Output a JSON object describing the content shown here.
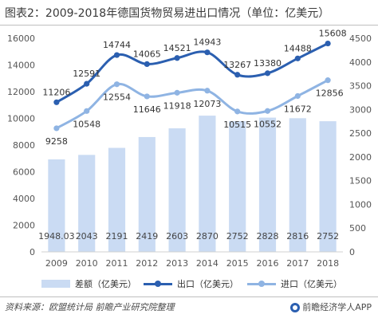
{
  "title": "图表2：2009-2018年德国货物贸易进出口情况（单位：亿美元）",
  "source": "资料来源：欧盟统计局 前瞻产业研究院整理",
  "brand": "前瞻经济学人APP",
  "colors": {
    "bars": "#cadbf3",
    "export": "#2b5fb0",
    "import": "#8fb4e3",
    "axis_text": "#555555"
  },
  "chart_data": {
    "type": "bar+line",
    "categories": [
      "2009",
      "2010",
      "2011",
      "2012",
      "2013",
      "2014",
      "2015",
      "2016",
      "2017",
      "2018"
    ],
    "series": [
      {
        "name": "差额（亿美元）",
        "type": "bar",
        "axis": "right",
        "values": [
          1948.03,
          2043,
          2191,
          2419,
          2603,
          2870,
          2752,
          2828,
          2816,
          2752
        ],
        "labels": [
          "1948.03",
          "2043",
          "2191",
          "2419",
          "2603",
          "2870",
          "2752",
          "2828",
          "2816",
          "2752"
        ]
      },
      {
        "name": "出口（亿美元）",
        "type": "line",
        "axis": "left",
        "values": [
          11206,
          12591,
          14744,
          14065,
          14521,
          14943,
          13267,
          13380,
          14488,
          15608
        ],
        "labels": [
          "11206",
          "12591",
          "14744",
          "14065",
          "14521",
          "14943",
          "13267",
          "13380",
          "14488",
          "15608"
        ]
      },
      {
        "name": "进口（亿美元）",
        "type": "line",
        "axis": "left",
        "values": [
          9258,
          10548,
          12554,
          11646,
          11918,
          12073,
          10515,
          10552,
          11672,
          12856
        ],
        "labels": [
          "9258",
          "10548",
          "12554",
          "11646",
          "11918",
          "12073",
          "10515",
          "10552",
          "11672",
          "12856"
        ]
      }
    ],
    "y_left": {
      "min": 0,
      "max": 16000,
      "ticks": [
        "0",
        "2000",
        "4000",
        "6000",
        "8000",
        "10000",
        "12000",
        "14000",
        "16000"
      ]
    },
    "y_right": {
      "min": 0,
      "max": 4500,
      "ticks": [
        "0",
        "500",
        "1000",
        "1500",
        "2000",
        "2500",
        "3000",
        "3500",
        "4000",
        "4500"
      ]
    },
    "grid": false,
    "legend": "bottom"
  }
}
